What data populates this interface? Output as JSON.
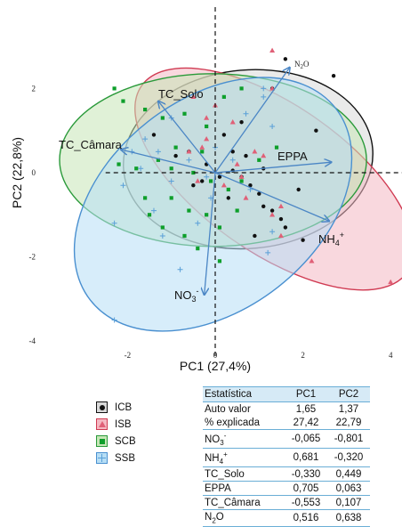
{
  "chart_data": {
    "type": "scatter",
    "xlabel": "PC1 (27,4%)",
    "ylabel": "PC2 (22,8%)",
    "xlim": [
      -2.5,
      4.1
    ],
    "ylim": [
      -4.2,
      3.8
    ],
    "x_ticks": [
      -2,
      0,
      2,
      4
    ],
    "y_ticks": [
      -4,
      -2,
      0,
      2
    ],
    "x_tick_labels": [
      "-2",
      "0",
      "2",
      "4"
    ],
    "y_tick_labels": [
      "-4",
      "-2",
      "0",
      "2"
    ],
    "grid": false,
    "legend_position": "bottom-left",
    "groups": [
      {
        "name": "ICB",
        "marker": "circle",
        "color": "#111111",
        "ellipse_fill": "#d9d9d9",
        "ellipse_stroke": "#111111",
        "ellipse": {
          "cx": 0.75,
          "cy": 0.32,
          "rx": 2.85,
          "ry": 2.12,
          "angle": 5
        },
        "points": [
          [
            1.6,
            2.7
          ],
          [
            2.7,
            2.3
          ],
          [
            1.3,
            2.0
          ],
          [
            0.6,
            1.2
          ],
          [
            -1.4,
            0.9
          ],
          [
            -0.6,
            0.5
          ],
          [
            0.4,
            0.5
          ],
          [
            -0.2,
            0.2
          ],
          [
            0.7,
            0.4
          ],
          [
            -0.9,
            0.4
          ],
          [
            1.1,
            0.1
          ],
          [
            0.1,
            -0.1
          ],
          [
            -0.3,
            -0.2
          ],
          [
            0.8,
            -0.3
          ],
          [
            1.0,
            -0.5
          ],
          [
            1.1,
            -0.8
          ],
          [
            0.3,
            -0.6
          ],
          [
            -0.5,
            -0.3
          ],
          [
            1.3,
            -0.9
          ],
          [
            1.5,
            -1.1
          ],
          [
            1.6,
            -1.3
          ],
          [
            0.9,
            -1.5
          ],
          [
            2.0,
            -1.6
          ],
          [
            0.4,
            0.05
          ],
          [
            0.6,
            -0.1
          ],
          [
            1.9,
            -0.4
          ],
          [
            2.3,
            1.0
          ],
          [
            0.2,
            0.9
          ]
        ]
      },
      {
        "name": "ISB",
        "marker": "triangle",
        "color": "#e06077",
        "ellipse_fill": "#f4b8c2",
        "ellipse_stroke": "#d03a52",
        "ellipse": {
          "cx": 1.35,
          "cy": -0.15,
          "rx": 3.7,
          "ry": 1.75,
          "angle": -35
        },
        "points": [
          [
            1.3,
            2.9
          ],
          [
            1.3,
            2.0
          ],
          [
            -0.5,
            1.8
          ],
          [
            -0.2,
            1.3
          ],
          [
            0.0,
            1.6
          ],
          [
            0.4,
            1.2
          ],
          [
            -0.6,
            0.5
          ],
          [
            0.5,
            0.2
          ],
          [
            -0.4,
            -0.2
          ],
          [
            0.7,
            -0.6
          ],
          [
            0.9,
            0.5
          ],
          [
            1.3,
            -1.0
          ],
          [
            2.2,
            -2.1
          ],
          [
            4.0,
            -2.6
          ],
          [
            1.5,
            -1.5
          ],
          [
            0.6,
            -0.1
          ],
          [
            -0.3,
            0.6
          ],
          [
            1.1,
            0.4
          ],
          [
            0.2,
            -0.3
          ],
          [
            1.5,
            -0.8
          ],
          [
            -0.2,
            0.8
          ]
        ]
      },
      {
        "name": "SCB",
        "marker": "square",
        "color": "#0e9f2b",
        "ellipse_fill": "#c6e6b6",
        "ellipse_stroke": "#2a9a3a",
        "ellipse": {
          "cx": -0.05,
          "cy": 0.3,
          "rx": 3.5,
          "ry": 2.05,
          "angle": 0
        },
        "points": [
          [
            -2.3,
            2.0
          ],
          [
            -2.1,
            1.7
          ],
          [
            -1.6,
            1.5
          ],
          [
            -1.2,
            1.3
          ],
          [
            -0.7,
            1.4
          ],
          [
            -0.2,
            1.1
          ],
          [
            0.2,
            1.8
          ],
          [
            0.6,
            2.0
          ],
          [
            -2.2,
            0.2
          ],
          [
            -1.8,
            0.1
          ],
          [
            -1.3,
            0.3
          ],
          [
            -0.9,
            0.6
          ],
          [
            -0.5,
            0.0
          ],
          [
            -0.1,
            -0.2
          ],
          [
            0.3,
            -0.4
          ],
          [
            0.6,
            -0.2
          ],
          [
            1.0,
            0.3
          ],
          [
            1.4,
            0.6
          ],
          [
            -1.6,
            -0.6
          ],
          [
            -1.0,
            -0.6
          ],
          [
            -0.6,
            -0.9
          ],
          [
            -0.2,
            -1.0
          ],
          [
            0.1,
            -1.3
          ],
          [
            -1.2,
            -1.3
          ],
          [
            -0.7,
            -1.5
          ],
          [
            -0.4,
            -1.8
          ],
          [
            0.1,
            -2.1
          ],
          [
            -1.5,
            -1.0
          ],
          [
            0.5,
            -0.9
          ],
          [
            -1.0,
            0.1
          ],
          [
            -0.3,
            0.5
          ]
        ]
      },
      {
        "name": "SSB",
        "marker": "plus",
        "color": "#5aa0d8",
        "ellipse_fill": "#b7def5",
        "ellipse_stroke": "#4a90d0",
        "ellipse": {
          "cx": -0.05,
          "cy": -0.75,
          "rx": 3.55,
          "ry": 2.5,
          "angle": 38
        },
        "points": [
          [
            -2.3,
            -1.2
          ],
          [
            -2.1,
            -0.3
          ],
          [
            -1.9,
            0.5
          ],
          [
            -1.7,
            0.1
          ],
          [
            -1.3,
            0.5
          ],
          [
            -1.0,
            -0.2
          ],
          [
            -0.6,
            0.3
          ],
          [
            -0.2,
            -0.1
          ],
          [
            0.0,
            0.6
          ],
          [
            0.4,
            0.3
          ],
          [
            0.7,
            1.4
          ],
          [
            1.1,
            1.8
          ],
          [
            1.1,
            2.0
          ],
          [
            1.3,
            1.1
          ],
          [
            -1.0,
            1.3
          ],
          [
            -1.4,
            -0.9
          ],
          [
            -1.2,
            -1.5
          ],
          [
            -0.4,
            -1.2
          ],
          [
            -0.8,
            -2.3
          ],
          [
            -2.3,
            -3.5
          ],
          [
            1.2,
            -1.9
          ],
          [
            1.3,
            -1.4
          ],
          [
            -1.6,
            0.8
          ],
          [
            -0.1,
            -0.6
          ],
          [
            0.8,
            -0.4
          ]
        ]
      }
    ],
    "vectors": [
      {
        "name": "TC_Solo",
        "x": -1.3,
        "y": 1.7
      },
      {
        "name": "TC_Câmara",
        "x": -2.15,
        "y": 0.55
      },
      {
        "name": "EPPA",
        "x": 2.65,
        "y": 0.25
      },
      {
        "name": "N2O",
        "x": 1.7,
        "y": 2.5
      },
      {
        "name": "NH4+",
        "x": 2.6,
        "y": -1.15
      },
      {
        "name": "NO3-",
        "x": -0.25,
        "y": -2.9
      }
    ],
    "vector_labels": {
      "TC_Solo": "TC_Solo",
      "TC_Câmara": "TC_Câmara",
      "EPPA": "EPPA",
      "N2O_main": "N",
      "N2O_sub": "2",
      "N2O_tail": "O",
      "NH4_main": "NH",
      "NH4_sub": "4",
      "NH4_sup": "+",
      "NO3_main": "NO",
      "NO3_sub": "3",
      "NO3_sup": "-"
    }
  },
  "legend": {
    "items": [
      {
        "label": "ICB",
        "color": "#111111",
        "border": "#111111",
        "bg": "#d9d9d9",
        "marker": "circle"
      },
      {
        "label": "ISB",
        "color": "#e06077",
        "border": "#d03a52",
        "bg": "#f4b8c2",
        "marker": "triangle"
      },
      {
        "label": "SCB",
        "color": "#0e9f2b",
        "border": "#2a9a3a",
        "bg": "#c6e6b6",
        "marker": "square"
      },
      {
        "label": "SSB",
        "color": "#5aa0d8",
        "border": "#4a90d0",
        "bg": "#b7def5",
        "marker": "plus"
      }
    ]
  },
  "stats_table": {
    "header": [
      "Estatística",
      "PC1",
      "PC2"
    ],
    "rows": [
      {
        "label": "Auto valor",
        "pc1": "1,65",
        "pc2": "1,37"
      },
      {
        "label": "% explicada",
        "pc1": "27,42",
        "pc2": "22,79"
      },
      {
        "label_main": "NO",
        "label_sub": "3",
        "label_sup": "-",
        "pc1": "-0,065",
        "pc2": "-0,801"
      },
      {
        "label_main": "NH",
        "label_sub": "4",
        "label_sup": "+",
        "pc1": "0,681",
        "pc2": "-0,320"
      },
      {
        "label": "TC_Solo",
        "pc1": "-0,330",
        "pc2": "0,449"
      },
      {
        "label": "EPPA",
        "pc1": "0,705",
        "pc2": "0,063"
      },
      {
        "label": "TC_Câmara",
        "pc1": "-0,553",
        "pc2": "0,107"
      },
      {
        "label_main": "N",
        "label_sub": "2",
        "label_tail": "O",
        "pc1": "0,516",
        "pc2": "0,638"
      }
    ]
  }
}
